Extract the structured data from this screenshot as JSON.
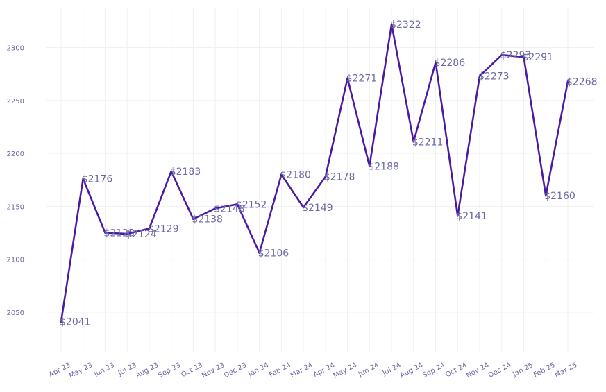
{
  "chart_data": {
    "type": "line",
    "title": "",
    "xlabel": "",
    "ylabel": "",
    "categories": [
      "Apr 23",
      "May 23",
      "Jun 23",
      "Jul 23",
      "Aug 23",
      "Sep 23",
      "Oct 23",
      "Nov 23",
      "Dec 23",
      "Jan 24",
      "Feb 24",
      "Mar 24",
      "Apr 24",
      "May 24",
      "Jun 24",
      "Jul 24",
      "Aug 24",
      "Sep 24",
      "Oct 24",
      "Nov 24",
      "Dec 24",
      "Jan 25",
      "Feb 25",
      "Mar 25"
    ],
    "series": [
      {
        "values": [
          2041,
          2176,
          2125,
          2124,
          2129,
          2183,
          2138,
          2148,
          2152,
          2106,
          2180,
          2149,
          2178,
          2271,
          2188,
          2322,
          2211,
          2286,
          2141,
          2273,
          2293,
          2291,
          2160,
          2268
        ],
        "labels": [
          "$2041",
          "$2176",
          "$2125",
          "$2124",
          "$2129",
          "$2183",
          "$2138",
          "$2148",
          "$2152",
          "$2106",
          "$2180",
          "$2149",
          "$2178",
          "$2271",
          "$2188",
          "$2322",
          "$2211",
          "$2286",
          "$2141",
          "$2273",
          "$2293",
          "$2291",
          "$2160",
          "$2268"
        ]
      }
    ],
    "ylim": [
      2012,
      2337
    ],
    "yticks": [
      2050,
      2100,
      2150,
      2200,
      2250,
      2300
    ],
    "ytick_labels": [
      "2050",
      "2100",
      "2150",
      "2200",
      "2250",
      "2300"
    ],
    "grid": true,
    "legend": "none",
    "colors": {
      "line": "#4a1aa3",
      "label": "#6b6aa5",
      "tick": "#6b6aa5",
      "grid": "#f0f0f0"
    }
  }
}
